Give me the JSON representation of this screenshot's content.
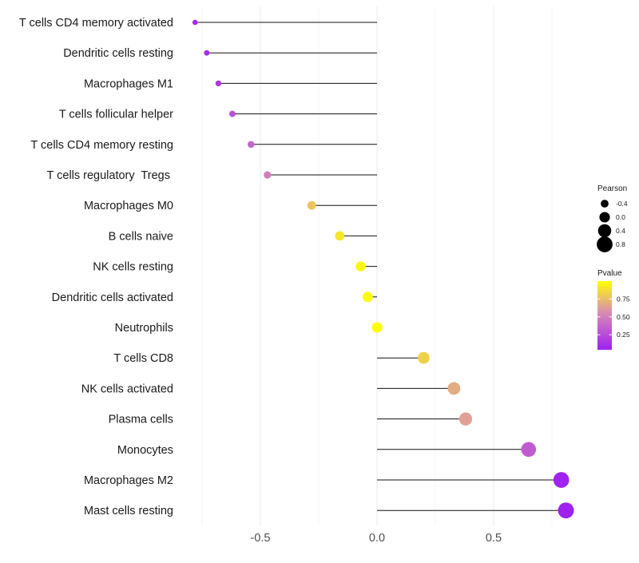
{
  "chart_data": {
    "type": "lollipop",
    "title": "",
    "xlabel": "",
    "ylabel": "",
    "xlim": [
      -0.8,
      0.85
    ],
    "xticks": [
      -0.5,
      0.0,
      0.5
    ],
    "xtick_labels": [
      "-0.5",
      "0.0",
      "0.5"
    ],
    "grid": true,
    "categories": [
      "T cells CD4 memory activated",
      "Dendritic cells resting",
      "Macrophages M1",
      "T cells follicular helper",
      "T cells CD4 memory resting",
      "T cells regulatory  Tregs ",
      "Macrophages M0",
      "B cells naive",
      "NK cells resting",
      "Dendritic cells activated",
      "Neutrophils",
      "T cells CD8",
      "NK cells activated",
      "Plasma cells",
      "Monocytes",
      "Macrophages M2",
      "Mast cells resting"
    ],
    "pearson": [
      -0.78,
      -0.73,
      -0.68,
      -0.62,
      -0.54,
      -0.47,
      -0.28,
      -0.16,
      -0.07,
      -0.04,
      0.0,
      0.2,
      0.33,
      0.38,
      0.65,
      0.79,
      0.81
    ],
    "pvalue": [
      0.08,
      0.1,
      0.15,
      0.25,
      0.35,
      0.45,
      0.75,
      0.9,
      0.97,
      0.98,
      1.0,
      0.8,
      0.65,
      0.6,
      0.3,
      0.05,
      0.04
    ],
    "legend_position": "right",
    "legend_size": {
      "title": "Pearson",
      "values": [
        -0.4,
        0.0,
        0.4,
        0.8
      ],
      "labels": [
        "-0.4",
        "0.0",
        "0.4",
        "0.8"
      ]
    },
    "legend_color": {
      "title": "Pvalue",
      "range": [
        0.04,
        1.0
      ],
      "ticks": [
        0.25,
        0.5,
        0.75
      ],
      "labels": [
        "0.25",
        "0.50",
        "0.75"
      ],
      "low_color": "#a020f0",
      "mid_color": "#d98db4",
      "high_color": "#ffff00"
    }
  }
}
